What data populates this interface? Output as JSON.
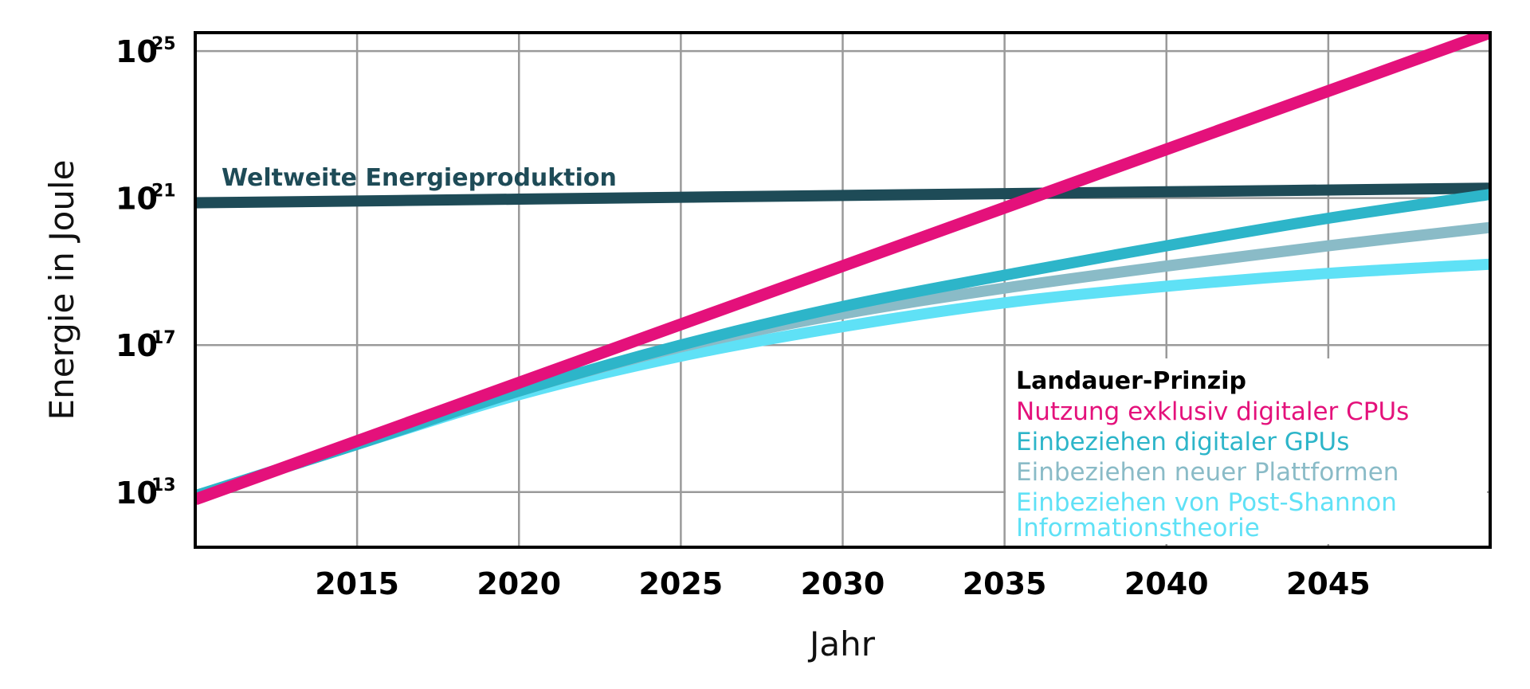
{
  "chart_data": {
    "type": "line",
    "xlabel": "Jahr",
    "ylabel": "Energie in Joule",
    "y_scale": "log",
    "xlim": [
      2010,
      2050
    ],
    "ylim_exponent": [
      11.5,
      25.5
    ],
    "x_ticks": [
      2015,
      2020,
      2025,
      2030,
      2035,
      2040,
      2045
    ],
    "x_tick_labels": [
      "2015",
      "2020",
      "2025",
      "2030",
      "2035",
      "2040",
      "2045"
    ],
    "y_ticks_exponent": [
      13,
      17,
      21,
      25
    ],
    "y_tick_labels": [
      {
        "base": "10",
        "exp": "13"
      },
      {
        "base": "10",
        "exp": "17"
      },
      {
        "base": "10",
        "exp": "21"
      },
      {
        "base": "10",
        "exp": "25"
      }
    ],
    "grid": true,
    "legend_title": "Landauer-Prinzip",
    "legend_position": "bottom-right",
    "world_label": "Weltweite Energieproduktion",
    "series": [
      {
        "name": "Weltweite Energieproduktion",
        "color": "#1e4b57",
        "x": [
          2010,
          2020,
          2030,
          2040,
          2050
        ],
        "log10_y": [
          20.87,
          20.97,
          21.07,
          21.17,
          21.27
        ]
      },
      {
        "name": "Nutzung exklusiv digitaler CPUs",
        "color": "#e4117b",
        "x": [
          2010,
          2050
        ],
        "log10_y": [
          12.8,
          25.5
        ]
      },
      {
        "name": "Einbeziehen digitaler GPUs",
        "color": "#2db5c9",
        "x": [
          2010,
          2015,
          2020,
          2025,
          2030,
          2035,
          2040,
          2045,
          2050
        ],
        "log10_y": [
          12.9,
          14.3,
          15.75,
          17.0,
          18.05,
          18.9,
          19.7,
          20.45,
          21.1
        ]
      },
      {
        "name": "Einbeziehen neuer Plattformen",
        "color": "#8abbc7",
        "x": [
          2010,
          2015,
          2020,
          2025,
          2030,
          2035,
          2040,
          2045,
          2050
        ],
        "log10_y": [
          12.9,
          14.3,
          15.75,
          16.95,
          17.85,
          18.55,
          19.15,
          19.7,
          20.2
        ]
      },
      {
        "name": "Einbeziehen von Post-Shannon Informationstheorie",
        "legend_lines": [
          "Einbeziehen von Post-Shannon",
          "Informationstheorie"
        ],
        "color": "#5fe1f6",
        "x": [
          2010,
          2015,
          2020,
          2025,
          2030,
          2035,
          2040,
          2045,
          2050
        ],
        "log10_y": [
          12.9,
          14.3,
          15.65,
          16.7,
          17.5,
          18.15,
          18.6,
          18.95,
          19.2
        ]
      }
    ]
  }
}
